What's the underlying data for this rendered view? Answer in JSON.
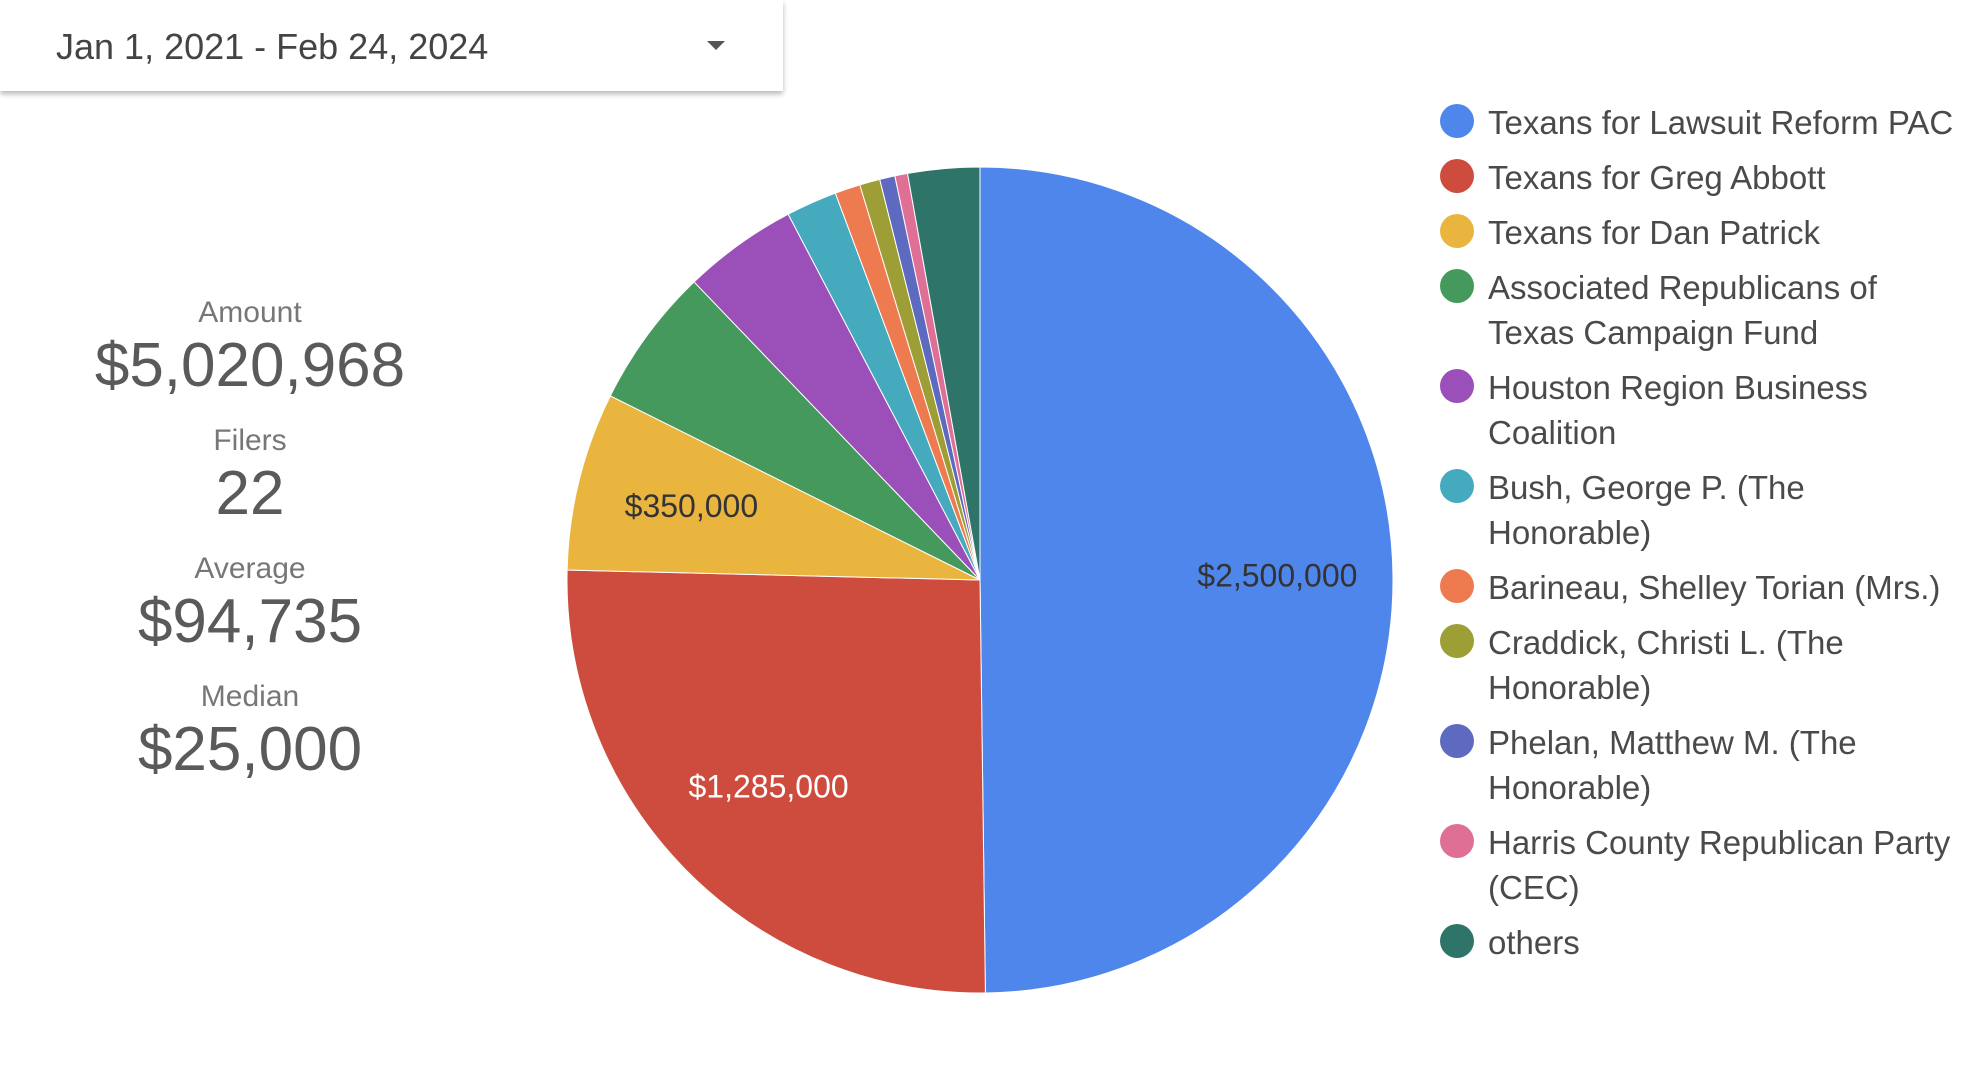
{
  "date_range": {
    "label": "Jan 1, 2021 - Feb 24, 2024"
  },
  "stats": {
    "amount_label": "Amount",
    "amount_value": "$5,020,968",
    "filers_label": "Filers",
    "filers_value": "22",
    "average_label": "Average",
    "average_value": "$94,735",
    "median_label": "Median",
    "median_value": "$25,000"
  },
  "chart_data": {
    "type": "pie",
    "legend_position": "right",
    "slices": [
      {
        "name": "Texans for Lawsuit Reform PAC",
        "value": 2500000,
        "color": "#4f86ec",
        "label": "$2,500,000",
        "label_color": "#333333"
      },
      {
        "name": "Texans for Greg Abbott",
        "value": 1285000,
        "color": "#cd4c3e",
        "label": "$1,285,000",
        "label_color": "#ffffff"
      },
      {
        "name": "Texans for Dan Patrick",
        "value": 350000,
        "color": "#eab53e",
        "label": "$350,000",
        "label_color": "#333333"
      },
      {
        "name": "Associated Republicans of Texas Campaign Fund",
        "value": 275000,
        "color": "#45995c",
        "label": "",
        "label_color": "#333333"
      },
      {
        "name": "Houston Region Business Coalition",
        "value": 225000,
        "color": "#9b4fb8",
        "label": "",
        "label_color": "#333333"
      },
      {
        "name": "Bush, George P. (The Honorable)",
        "value": 100000,
        "color": "#46aabf",
        "label": "",
        "label_color": "#333333"
      },
      {
        "name": "Barineau, Shelley Torian (Mrs.)",
        "value": 50000,
        "color": "#ee7b4f",
        "label": "",
        "label_color": "#333333"
      },
      {
        "name": "Craddick, Christi L. (The Honorable)",
        "value": 40000,
        "color": "#9d9e36",
        "label": "",
        "label_color": "#333333"
      },
      {
        "name": "Phelan, Matthew M. (The Honorable)",
        "value": 30000,
        "color": "#5e6abf",
        "label": "",
        "label_color": "#333333"
      },
      {
        "name": "Harris County Republican Party (CEC)",
        "value": 25000,
        "color": "#df6f95",
        "label": "",
        "label_color": "#333333"
      },
      {
        "name": "others",
        "value": 140968,
        "color": "#2f7468",
        "label": "",
        "label_color": "#333333"
      }
    ]
  }
}
